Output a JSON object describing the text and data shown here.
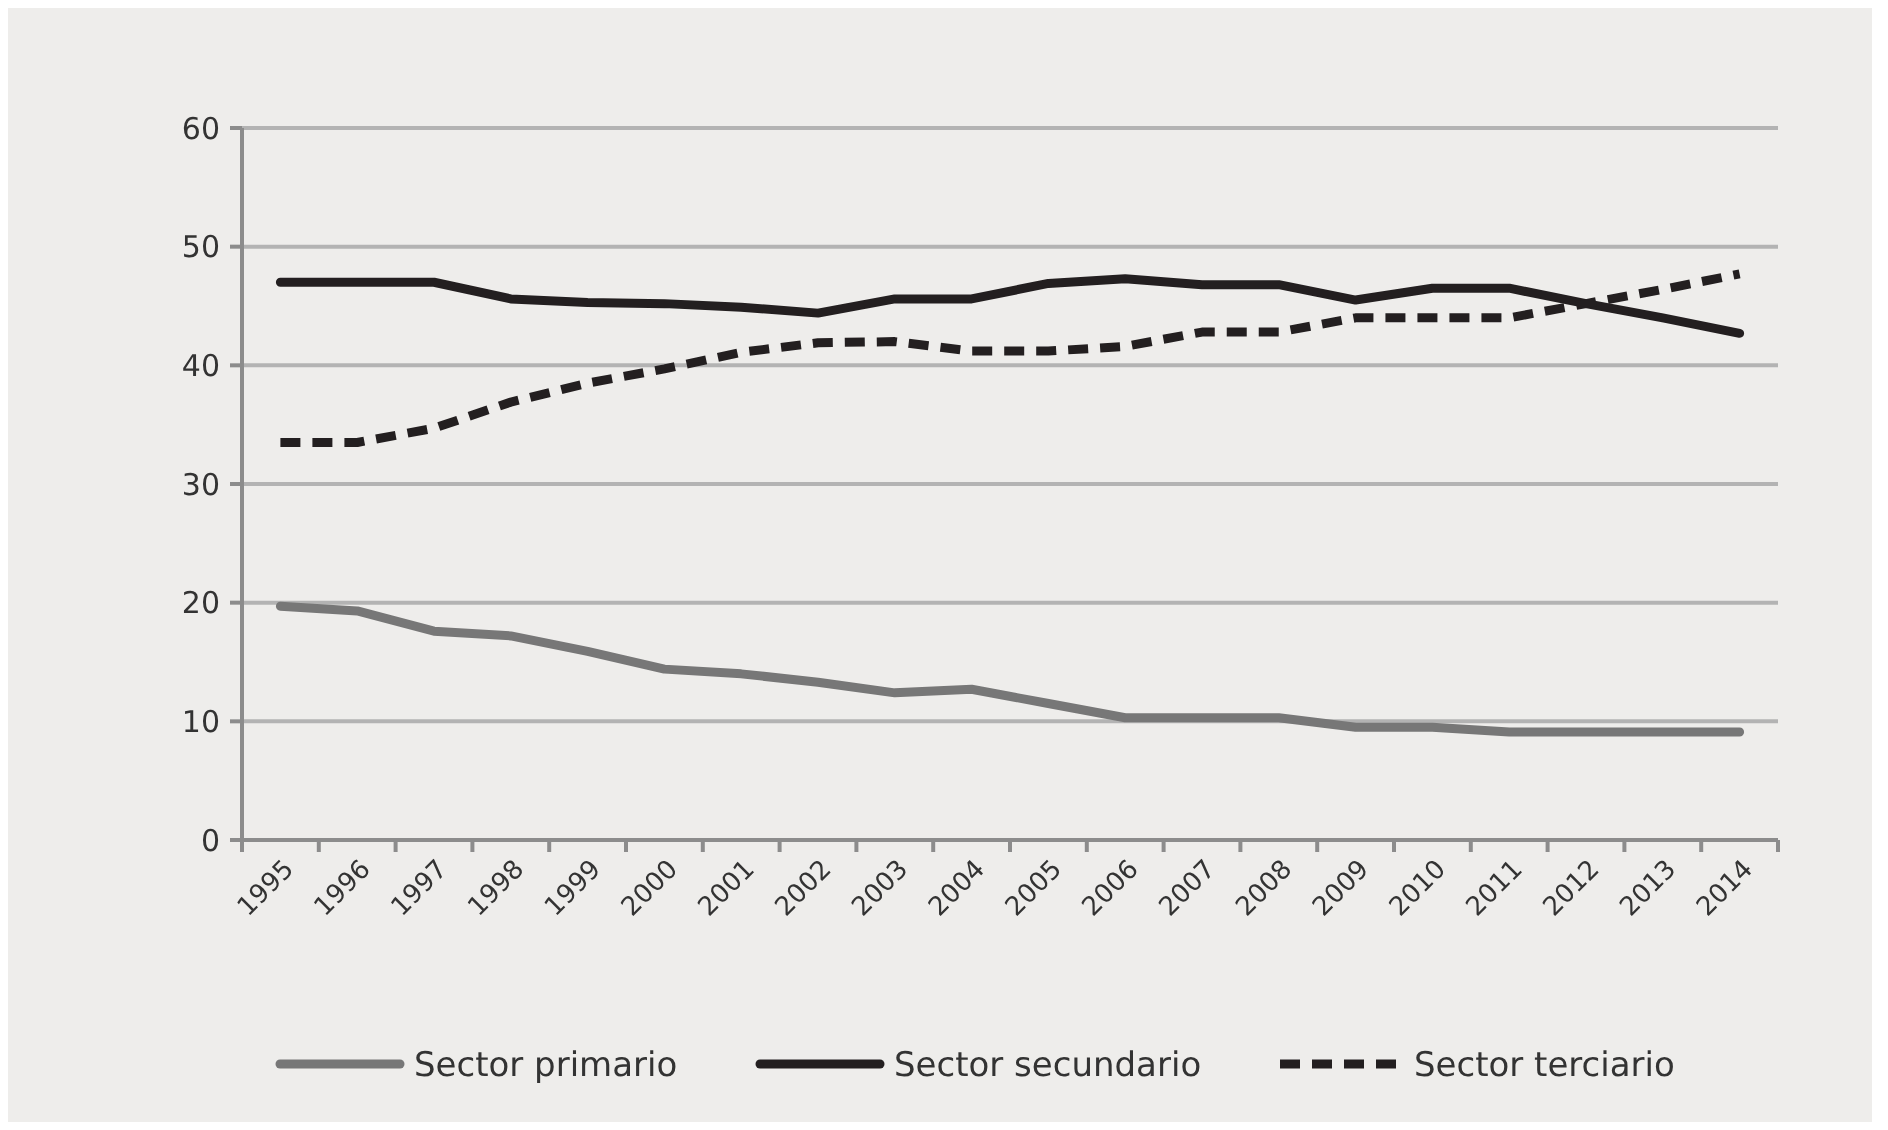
{
  "chart_data": {
    "type": "line",
    "categories": [
      "1995",
      "1996",
      "1997",
      "1998",
      "1999",
      "2000",
      "2001",
      "2002",
      "2003",
      "2004",
      "2005",
      "2006",
      "2007",
      "2008",
      "2009",
      "2010",
      "2011",
      "2012",
      "2013",
      "2014"
    ],
    "series": [
      {
        "name": "Sector primario",
        "color": "#777777",
        "line_style": "solid",
        "values": [
          19.7,
          19.3,
          17.6,
          17.2,
          15.9,
          14.4,
          14.0,
          13.3,
          12.4,
          12.7,
          11.5,
          10.3,
          10.3,
          10.3,
          9.5,
          9.5,
          9.1,
          9.1,
          9.1,
          9.1
        ]
      },
      {
        "name": "Sector secundario",
        "color": "#231f20",
        "line_style": "solid",
        "values": [
          47,
          47,
          47,
          45.6,
          45.3,
          45.2,
          44.9,
          44.4,
          45.6,
          45.6,
          46.9,
          47.3,
          46.8,
          46.8,
          45.5,
          46.5,
          46.5,
          45.2,
          44.0,
          42.7
        ]
      },
      {
        "name": "Sector terciario",
        "color": "#231f20",
        "line_style": "dashed",
        "values": [
          33.5,
          33.5,
          34.7,
          36.9,
          38.5,
          39.7,
          41.1,
          41.9,
          42.0,
          41.2,
          41.2,
          41.6,
          42.8,
          42.8,
          44.0,
          44.0,
          44.0,
          45.2,
          46.4,
          47.7
        ]
      }
    ],
    "ylim": [
      0,
      60
    ],
    "yticks": [
      0,
      10,
      20,
      30,
      40,
      50,
      60
    ],
    "grid": "y",
    "legend": "bottom"
  }
}
